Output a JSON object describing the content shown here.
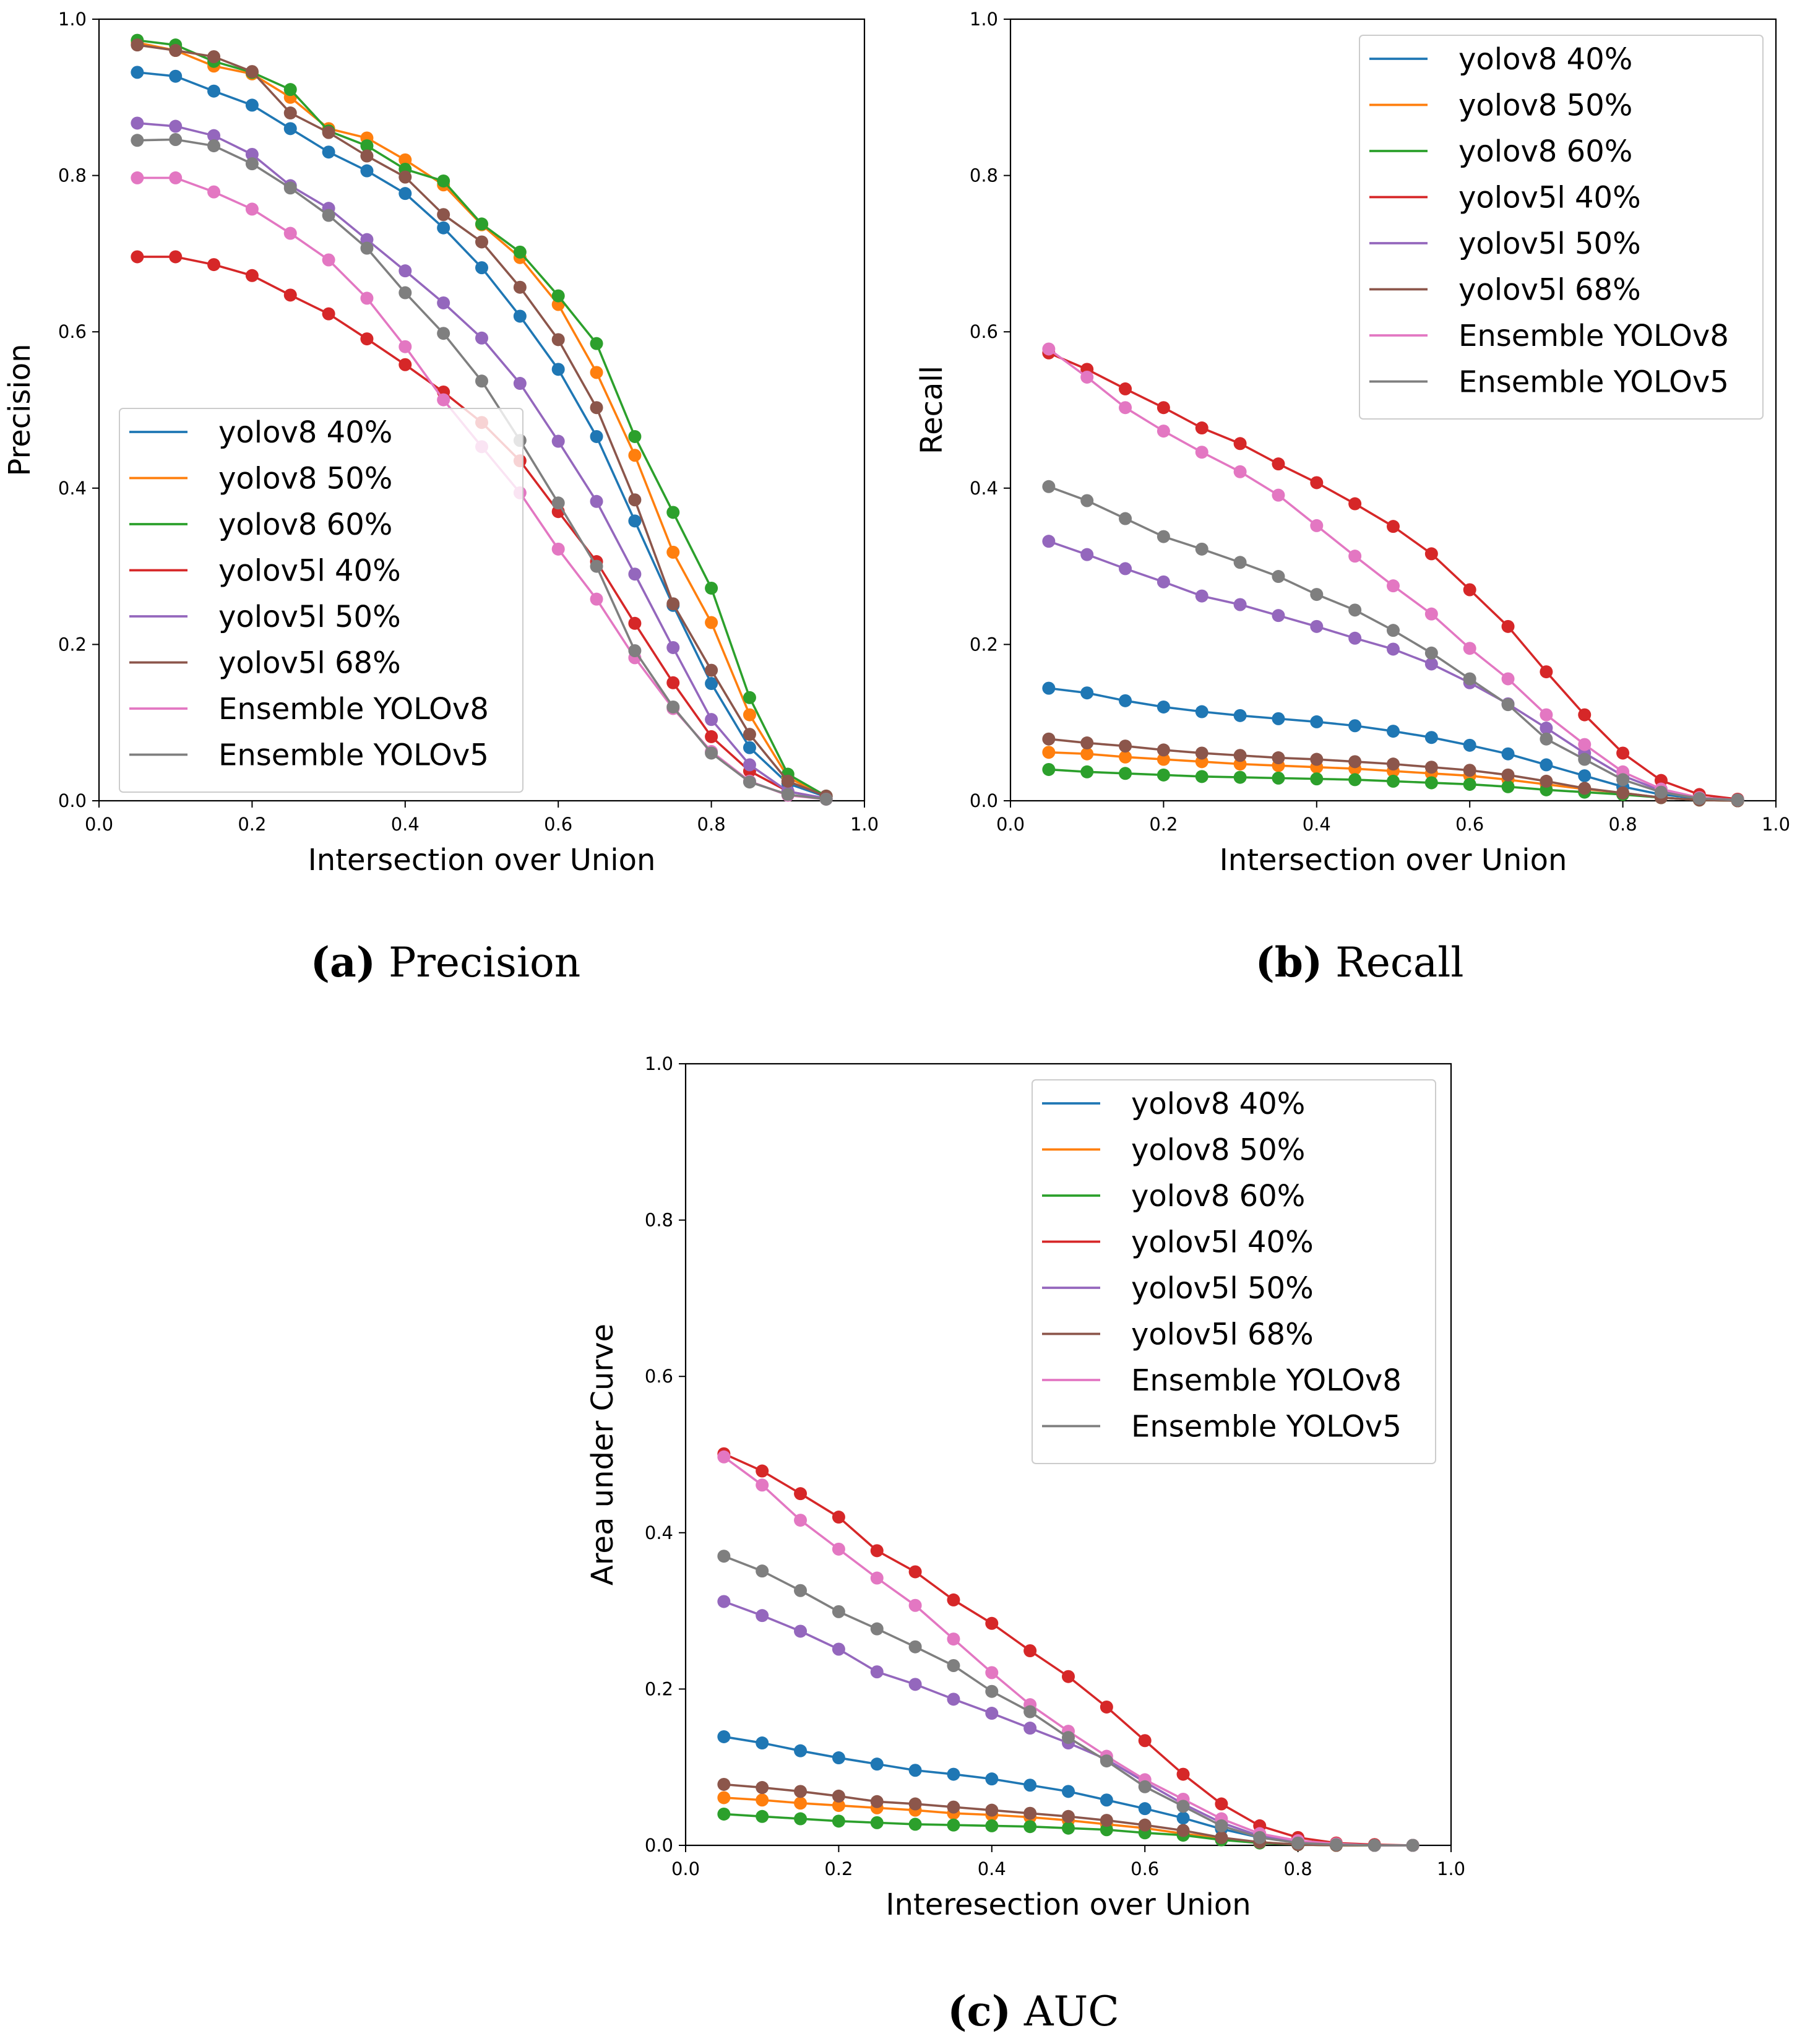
{
  "x_values": [
    0.05,
    0.1,
    0.15,
    0.2,
    0.25,
    0.3,
    0.35,
    0.4,
    0.45,
    0.5,
    0.55,
    0.6,
    0.65,
    0.7,
    0.75,
    0.8,
    0.85,
    0.9,
    0.95
  ],
  "series_names": [
    "yolov8 40%",
    "yolov8 50%",
    "yolov8 60%",
    "yolov5l 40%",
    "yolov5l 50%",
    "yolov5l 68%",
    "Ensemble YOLOv8",
    "Ensemble YOLOv5"
  ],
  "colors": [
    "#1f77b4",
    "#ff7f0e",
    "#2ca02c",
    "#d62728",
    "#9467bd",
    "#8c564b",
    "#e377c2",
    "#7f7f7f"
  ],
  "chart_data": [
    {
      "type": "line",
      "title": "",
      "xlabel": "Intersection over Union",
      "ylabel": "Precision",
      "xlim": [
        0.0,
        1.0
      ],
      "ylim": [
        0.0,
        1.0
      ],
      "xticks": [
        "0.0",
        "0.2",
        "0.4",
        "0.6",
        "0.8",
        "1.0"
      ],
      "yticks": [
        "0.0",
        "0.2",
        "0.4",
        "0.6",
        "0.8",
        "1.0"
      ],
      "legend_position": "lower-left",
      "caption_letter": "(a)",
      "caption_text": " Precision",
      "series": [
        {
          "name": "yolov8 40%",
          "values": [
            0.932,
            0.927,
            0.908,
            0.89,
            0.86,
            0.83,
            0.806,
            0.777,
            0.733,
            0.682,
            0.62,
            0.552,
            0.466,
            0.358,
            0.25,
            0.15,
            0.068,
            0.022,
            0.005
          ]
        },
        {
          "name": "yolov8 50%",
          "values": [
            0.97,
            0.96,
            0.94,
            0.93,
            0.9,
            0.86,
            0.848,
            0.82,
            0.788,
            0.737,
            0.695,
            0.635,
            0.548,
            0.442,
            0.318,
            0.228,
            0.11,
            0.03,
            0.005
          ]
        },
        {
          "name": "yolov8 60%",
          "values": [
            0.973,
            0.967,
            0.946,
            0.932,
            0.91,
            0.857,
            0.838,
            0.808,
            0.793,
            0.738,
            0.702,
            0.646,
            0.585,
            0.466,
            0.369,
            0.272,
            0.132,
            0.034,
            0.006
          ]
        },
        {
          "name": "yolov5l 40%",
          "values": [
            0.696,
            0.696,
            0.686,
            0.672,
            0.647,
            0.623,
            0.591,
            0.558,
            0.523,
            0.484,
            0.435,
            0.37,
            0.306,
            0.227,
            0.151,
            0.082,
            0.038,
            0.012,
            0.003
          ]
        },
        {
          "name": "yolov5l 50%",
          "values": [
            0.867,
            0.863,
            0.851,
            0.827,
            0.787,
            0.758,
            0.718,
            0.678,
            0.637,
            0.592,
            0.534,
            0.46,
            0.383,
            0.29,
            0.196,
            0.104,
            0.046,
            0.012,
            0.003
          ]
        },
        {
          "name": "yolov5l 68%",
          "values": [
            0.967,
            0.96,
            0.952,
            0.933,
            0.88,
            0.855,
            0.825,
            0.798,
            0.75,
            0.715,
            0.657,
            0.59,
            0.503,
            0.385,
            0.252,
            0.167,
            0.085,
            0.025,
            0.006
          ]
        },
        {
          "name": "Ensemble YOLOv8",
          "values": [
            0.797,
            0.797,
            0.779,
            0.757,
            0.726,
            0.692,
            0.643,
            0.581,
            0.513,
            0.453,
            0.394,
            0.322,
            0.258,
            0.183,
            0.118,
            0.063,
            0.025,
            0.007,
            0.002
          ]
        },
        {
          "name": "Ensemble YOLOv5",
          "values": [
            0.845,
            0.846,
            0.838,
            0.815,
            0.784,
            0.749,
            0.707,
            0.65,
            0.598,
            0.537,
            0.461,
            0.381,
            0.3,
            0.192,
            0.12,
            0.061,
            0.024,
            0.008,
            0.002
          ]
        }
      ]
    },
    {
      "type": "line",
      "title": "",
      "xlabel": "Intersection over Union",
      "ylabel": "Recall",
      "xlim": [
        0.0,
        1.0
      ],
      "ylim": [
        0.0,
        1.0
      ],
      "xticks": [
        "0.0",
        "0.2",
        "0.4",
        "0.6",
        "0.8",
        "1.0"
      ],
      "yticks": [
        "0.0",
        "0.2",
        "0.4",
        "0.6",
        "0.8",
        "1.0"
      ],
      "legend_position": "upper-right",
      "caption_letter": "(b)",
      "caption_text": " Recall",
      "series": [
        {
          "name": "yolov8 40%",
          "values": [
            0.144,
            0.138,
            0.128,
            0.12,
            0.114,
            0.109,
            0.105,
            0.101,
            0.096,
            0.089,
            0.081,
            0.071,
            0.06,
            0.046,
            0.032,
            0.018,
            0.008,
            0.003,
            0.001
          ]
        },
        {
          "name": "yolov8 50%",
          "values": [
            0.062,
            0.06,
            0.056,
            0.053,
            0.05,
            0.047,
            0.045,
            0.043,
            0.041,
            0.038,
            0.035,
            0.032,
            0.027,
            0.021,
            0.015,
            0.01,
            0.004,
            0.001,
            0.0
          ]
        },
        {
          "name": "yolov8 60%",
          "values": [
            0.04,
            0.037,
            0.035,
            0.033,
            0.031,
            0.03,
            0.029,
            0.028,
            0.027,
            0.025,
            0.023,
            0.021,
            0.018,
            0.014,
            0.011,
            0.008,
            0.004,
            0.001,
            0.0
          ]
        },
        {
          "name": "yolov5l 40%",
          "values": [
            0.573,
            0.552,
            0.527,
            0.503,
            0.477,
            0.457,
            0.431,
            0.407,
            0.38,
            0.351,
            0.316,
            0.27,
            0.223,
            0.165,
            0.11,
            0.061,
            0.026,
            0.008,
            0.002
          ]
        },
        {
          "name": "yolov5l 50%",
          "values": [
            0.332,
            0.315,
            0.297,
            0.28,
            0.262,
            0.251,
            0.237,
            0.223,
            0.208,
            0.194,
            0.175,
            0.151,
            0.124,
            0.093,
            0.061,
            0.032,
            0.013,
            0.004,
            0.001
          ]
        },
        {
          "name": "yolov5l 68%",
          "values": [
            0.079,
            0.074,
            0.07,
            0.065,
            0.061,
            0.058,
            0.055,
            0.053,
            0.05,
            0.047,
            0.043,
            0.039,
            0.033,
            0.025,
            0.016,
            0.01,
            0.004,
            0.001,
            0.0
          ]
        },
        {
          "name": "Ensemble YOLOv8",
          "values": [
            0.578,
            0.542,
            0.503,
            0.473,
            0.446,
            0.421,
            0.391,
            0.352,
            0.313,
            0.275,
            0.239,
            0.195,
            0.156,
            0.11,
            0.072,
            0.037,
            0.015,
            0.004,
            0.001
          ]
        },
        {
          "name": "Ensemble YOLOv5",
          "values": [
            0.402,
            0.384,
            0.361,
            0.338,
            0.322,
            0.305,
            0.287,
            0.264,
            0.244,
            0.218,
            0.189,
            0.156,
            0.123,
            0.079,
            0.053,
            0.027,
            0.011,
            0.003,
            0.001
          ]
        }
      ]
    },
    {
      "type": "line",
      "title": "",
      "xlabel": "Interesection over Union",
      "ylabel": "Area under Curve",
      "xlim": [
        0.0,
        1.0
      ],
      "ylim": [
        0.0,
        1.0
      ],
      "xticks": [
        "0.0",
        "0.2",
        "0.4",
        "0.6",
        "0.8",
        "1.0"
      ],
      "yticks": [
        "0.0",
        "0.2",
        "0.4",
        "0.6",
        "0.8",
        "1.0"
      ],
      "legend_position": "upper-right",
      "caption_letter": "(c)",
      "caption_text": " AUC",
      "series": [
        {
          "name": "yolov8 40%",
          "values": [
            0.139,
            0.131,
            0.121,
            0.112,
            0.104,
            0.096,
            0.091,
            0.085,
            0.077,
            0.069,
            0.058,
            0.047,
            0.035,
            0.021,
            0.01,
            0.004,
            0.001,
            0.0,
            0.0
          ]
        },
        {
          "name": "yolov8 50%",
          "values": [
            0.061,
            0.058,
            0.054,
            0.051,
            0.048,
            0.045,
            0.041,
            0.039,
            0.036,
            0.032,
            0.027,
            0.022,
            0.015,
            0.009,
            0.004,
            0.001,
            0.0,
            0.0,
            0.0
          ]
        },
        {
          "name": "yolov8 60%",
          "values": [
            0.04,
            0.037,
            0.034,
            0.031,
            0.029,
            0.027,
            0.026,
            0.025,
            0.024,
            0.022,
            0.02,
            0.016,
            0.013,
            0.007,
            0.003,
            0.001,
            0.0,
            0.0,
            0.0
          ]
        },
        {
          "name": "yolov5l 40%",
          "values": [
            0.501,
            0.479,
            0.45,
            0.42,
            0.377,
            0.35,
            0.314,
            0.284,
            0.249,
            0.216,
            0.177,
            0.134,
            0.091,
            0.053,
            0.025,
            0.01,
            0.003,
            0.001,
            0.0
          ]
        },
        {
          "name": "yolov5l 50%",
          "values": [
            0.312,
            0.294,
            0.274,
            0.251,
            0.222,
            0.206,
            0.187,
            0.169,
            0.15,
            0.131,
            0.11,
            0.081,
            0.053,
            0.029,
            0.012,
            0.004,
            0.001,
            0.0,
            0.0
          ]
        },
        {
          "name": "yolov5l 68%",
          "values": [
            0.078,
            0.074,
            0.069,
            0.063,
            0.056,
            0.053,
            0.049,
            0.045,
            0.041,
            0.037,
            0.032,
            0.026,
            0.019,
            0.01,
            0.004,
            0.001,
            0.0,
            0.0,
            0.0
          ]
        },
        {
          "name": "Ensemble YOLOv8",
          "values": [
            0.497,
            0.461,
            0.416,
            0.379,
            0.342,
            0.307,
            0.264,
            0.221,
            0.18,
            0.146,
            0.114,
            0.084,
            0.059,
            0.034,
            0.015,
            0.006,
            0.002,
            0.0,
            0.0
          ]
        },
        {
          "name": "Ensemble YOLOv5",
          "values": [
            0.37,
            0.351,
            0.326,
            0.299,
            0.277,
            0.254,
            0.23,
            0.197,
            0.171,
            0.138,
            0.108,
            0.075,
            0.05,
            0.025,
            0.01,
            0.003,
            0.001,
            0.0,
            0.0
          ]
        }
      ]
    }
  ]
}
